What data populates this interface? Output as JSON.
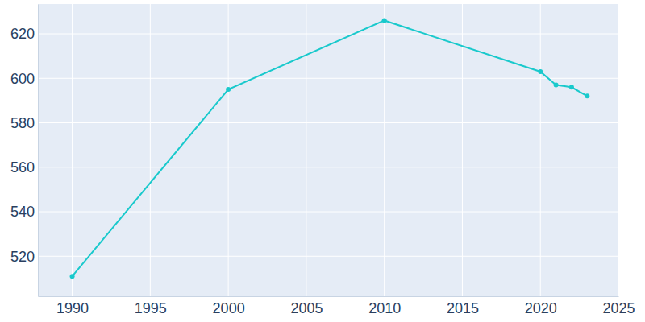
{
  "chart_data": {
    "type": "line",
    "x": [
      1990,
      2000,
      2010,
      2020,
      2021,
      2022,
      2023
    ],
    "values": [
      511,
      595,
      626,
      603,
      597,
      596,
      592
    ],
    "color": "#19c9cc",
    "marker": "circle",
    "xlim": [
      1987.8,
      2025
    ],
    "xticks": [
      1990,
      1995,
      2000,
      2005,
      2010,
      2015,
      2020,
      2025
    ],
    "ylim": [
      502,
      633.4
    ],
    "yticks": [
      520,
      540,
      560,
      580,
      600,
      620
    ],
    "grid": true
  }
}
